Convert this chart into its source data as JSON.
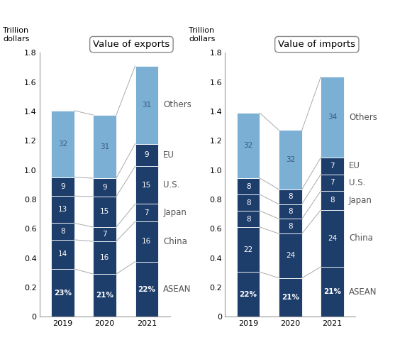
{
  "exports": {
    "title": "Value of exports",
    "years": [
      "2019",
      "2020",
      "2021"
    ],
    "totals": [
      1.42,
      1.39,
      1.71
    ],
    "segments": {
      "ASEAN": [
        0.23,
        0.21,
        0.22
      ],
      "China": [
        0.14,
        0.16,
        0.16
      ],
      "Japan": [
        0.08,
        0.07,
        0.07
      ],
      "U.S.": [
        0.13,
        0.15,
        0.15
      ],
      "EU": [
        0.09,
        0.09,
        0.09
      ],
      "Others": [
        0.32,
        0.31,
        0.31
      ]
    },
    "labels": {
      "ASEAN": [
        "23%",
        "21%",
        "22%"
      ],
      "China": [
        "14",
        "16",
        "16"
      ],
      "Japan": [
        "8",
        "7",
        "7"
      ],
      "U.S.": [
        "13",
        "15",
        "15"
      ],
      "EU": [
        "9",
        "9",
        "9"
      ],
      "Others": [
        "32",
        "31",
        "31"
      ]
    }
  },
  "imports": {
    "title": "Value of imports",
    "years": [
      "2019",
      "2020",
      "2021"
    ],
    "totals": [
      1.39,
      1.26,
      1.62
    ],
    "segments": {
      "ASEAN": [
        0.22,
        0.21,
        0.21
      ],
      "China": [
        0.22,
        0.24,
        0.24
      ],
      "Japan": [
        0.08,
        0.08,
        0.08
      ],
      "U.S.": [
        0.08,
        0.08,
        0.07
      ],
      "EU": [
        0.08,
        0.08,
        0.07
      ],
      "Others": [
        0.32,
        0.32,
        0.34
      ]
    },
    "labels": {
      "ASEAN": [
        "22%",
        "21%",
        "21%"
      ],
      "China": [
        "22",
        "24",
        "24"
      ],
      "Japan": [
        "8",
        "8",
        "8"
      ],
      "U.S.": [
        "8",
        "8",
        "7"
      ],
      "EU": [
        "8",
        "8",
        "7"
      ],
      "Others": [
        "32",
        "32",
        "34"
      ]
    }
  },
  "segment_order": [
    "ASEAN",
    "China",
    "Japan",
    "U.S.",
    "EU",
    "Others"
  ],
  "dark_color": "#1d3d6b",
  "light_color": "#7bafd4",
  "ylabel": "Trillion\ndollars",
  "ylim": [
    0,
    1.8
  ],
  "yticks": [
    0,
    0.2,
    0.4,
    0.6,
    0.8,
    1.0,
    1.2,
    1.4,
    1.6,
    1.8
  ],
  "bar_width": 0.55,
  "label_fontsize": 7.5,
  "title_fontsize": 9.5,
  "legend_fontsize": 8.5,
  "axis_fontsize": 8,
  "segment_legend_names": [
    "Others",
    "EU",
    "U.S.",
    "Japan",
    "China",
    "ASEAN"
  ]
}
